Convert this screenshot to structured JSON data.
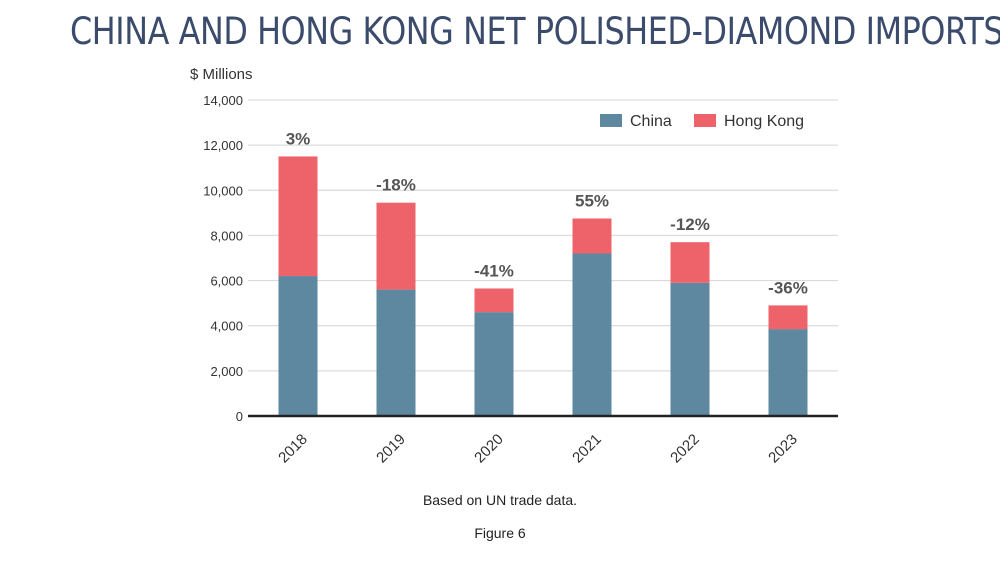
{
  "page": {
    "title": "CHINA AND HONG KONG NET POLISHED-DIAMOND IMPORTS",
    "source": "Based on UN trade data.",
    "figure_label": "Figure 6"
  },
  "colors": {
    "china": "#5e87a0",
    "hong_kong": "#ee636a",
    "title": "#3b4b6b",
    "grid": "#d4d4d4",
    "text": "#333333"
  },
  "chart_data": {
    "type": "bar",
    "stacked": true,
    "title": "CHINA AND HONG KONG NET POLISHED-DIAMOND IMPORTS",
    "xlabel": "",
    "ylabel": "$ Millions",
    "ylim": [
      0,
      14000
    ],
    "yticks": [
      0,
      2000,
      4000,
      6000,
      8000,
      10000,
      12000,
      14000
    ],
    "ytick_labels": [
      "0",
      "2,000",
      "4,000",
      "6,000",
      "8,000",
      "10,000",
      "12,000",
      "14,000"
    ],
    "categories": [
      "2018",
      "2019",
      "2020",
      "2021",
      "2022",
      "2023"
    ],
    "series": [
      {
        "name": "China",
        "values": [
          6200,
          5600,
          4600,
          7200,
          5900,
          3850
        ]
      },
      {
        "name": "Hong Kong",
        "values": [
          5300,
          3850,
          1050,
          1550,
          1800,
          1050
        ]
      }
    ],
    "annotations": [
      "3%",
      "-18%",
      "-41%",
      "55%",
      "-12%",
      "-36%"
    ],
    "legend": {
      "position": "top-right",
      "entries": [
        "China",
        "Hong Kong"
      ]
    },
    "grid": true
  }
}
